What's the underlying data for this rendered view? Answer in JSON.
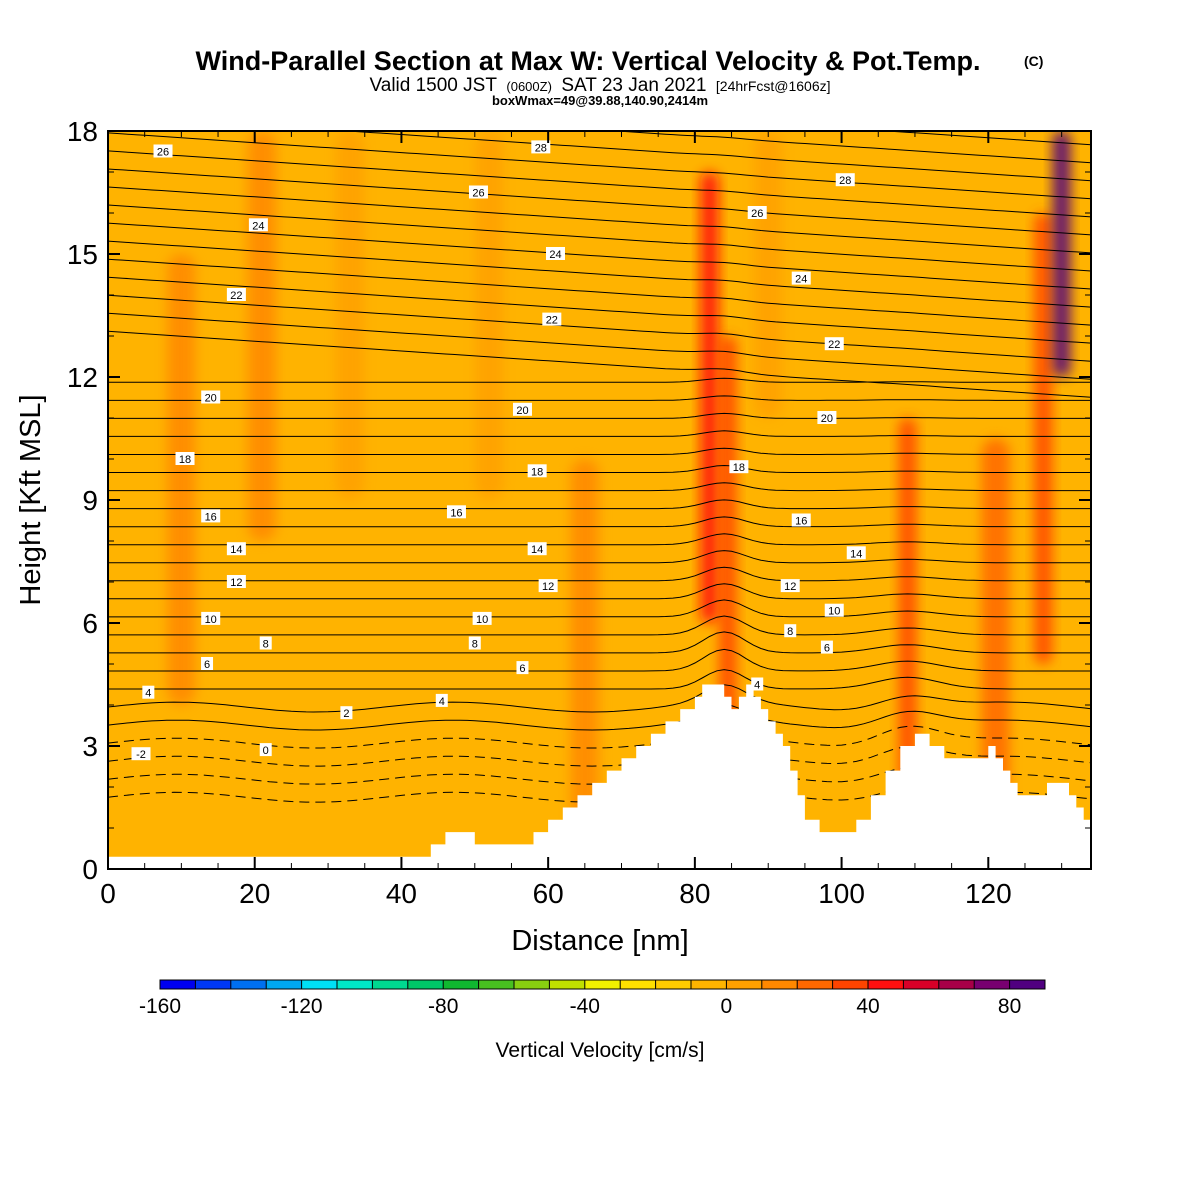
{
  "header": {
    "title": "Wind-Parallel Section at Max W: Vertical Velocity & Pot.Temp.",
    "title_mark": "(C)",
    "valid_prefix": "Valid 1500 JST",
    "valid_utc": "(0600Z)",
    "valid_date": "SAT 23 Jan 2021",
    "forecast": "[24hrFcst@1606z]",
    "box_info": "boxWmax=49@39.88,140.90,2414m"
  },
  "chart_data": {
    "type": "heatmap",
    "xlabel": "Distance [nm]",
    "ylabel": "Height [Kft MSL]",
    "xlim": [
      0,
      134
    ],
    "ylim": [
      0,
      18
    ],
    "x_ticks": [
      0,
      20,
      40,
      60,
      80,
      100,
      120
    ],
    "y_ticks": [
      0,
      3,
      6,
      9,
      12,
      15,
      18
    ],
    "grid": false,
    "colorbar": {
      "label": "Vertical Velocity [cm/s]",
      "min": -160,
      "max": 90,
      "step": 10,
      "tick_values": [
        -160,
        -120,
        -80,
        -40,
        0,
        40,
        80
      ],
      "colors": [
        "#0000f0",
        "#0038f5",
        "#0070f0",
        "#00a8f0",
        "#00e0f5",
        "#00e8c8",
        "#00d890",
        "#00c868",
        "#10b830",
        "#48c020",
        "#88d010",
        "#c0e000",
        "#f0f000",
        "#ffe000",
        "#ffcc00",
        "#ffb400",
        "#ffa000",
        "#ff8800",
        "#ff6800",
        "#ff4400",
        "#ff1010",
        "#d80028",
        "#a80048",
        "#780070",
        "#500080"
      ]
    },
    "velocity_bands": [
      {
        "x": 10,
        "z": 7,
        "w": 10
      },
      {
        "x": 21,
        "z": 11,
        "w": 12
      },
      {
        "x": 33,
        "z": 12,
        "w": 4
      },
      {
        "x": 52,
        "z": 12,
        "w": 3
      },
      {
        "x": 65,
        "z": 2,
        "w": 16
      },
      {
        "x": 82,
        "z": 9,
        "w": 40
      },
      {
        "x": 84.5,
        "z": 5,
        "w": 36
      },
      {
        "x": 90,
        "z": 14,
        "w": 5
      },
      {
        "x": 109,
        "z": 3,
        "w": 30
      },
      {
        "x": 121,
        "z": 2.5,
        "w": 28
      },
      {
        "x": 127.5,
        "z": 8,
        "w": 30
      },
      {
        "x": 130,
        "z": 15,
        "w": 85
      }
    ],
    "terrain": [
      [
        0,
        0.3
      ],
      [
        44,
        0.3
      ],
      [
        44,
        0.6
      ],
      [
        46,
        0.6
      ],
      [
        46,
        0.9
      ],
      [
        50,
        0.9
      ],
      [
        50,
        0.6
      ],
      [
        58,
        0.6
      ],
      [
        58,
        0.9
      ],
      [
        60,
        1.2
      ],
      [
        62,
        1.5
      ],
      [
        64,
        1.8
      ],
      [
        66,
        2.1
      ],
      [
        68,
        2.4
      ],
      [
        70,
        2.7
      ],
      [
        72,
        3.0
      ],
      [
        74,
        3.3
      ],
      [
        76,
        3.6
      ],
      [
        78,
        3.9
      ],
      [
        80,
        4.2
      ],
      [
        81,
        4.5
      ],
      [
        83,
        4.5
      ],
      [
        84,
        4.2
      ],
      [
        85,
        3.9
      ],
      [
        86,
        4.2
      ],
      [
        87,
        4.5
      ],
      [
        88,
        4.2
      ],
      [
        89,
        3.9
      ],
      [
        90,
        3.6
      ],
      [
        91,
        3.3
      ],
      [
        92,
        3.0
      ],
      [
        93,
        2.4
      ],
      [
        94,
        1.8
      ],
      [
        95,
        1.2
      ],
      [
        97,
        0.9
      ],
      [
        100,
        0.9
      ],
      [
        102,
        1.2
      ],
      [
        104,
        1.8
      ],
      [
        106,
        2.4
      ],
      [
        108,
        3.0
      ],
      [
        110,
        3.3
      ],
      [
        112,
        3.0
      ],
      [
        114,
        2.7
      ],
      [
        118,
        2.7
      ],
      [
        120,
        3.0
      ],
      [
        121,
        2.7
      ],
      [
        122,
        2.4
      ],
      [
        123,
        2.1
      ],
      [
        124,
        1.8
      ],
      [
        126,
        1.8
      ],
      [
        128,
        2.1
      ],
      [
        130,
        2.1
      ],
      [
        131,
        1.8
      ],
      [
        132,
        1.5
      ],
      [
        133,
        1.2
      ],
      [
        134,
        1.2
      ]
    ],
    "isentrope_labels": [
      {
        "x": 7.5,
        "y": 17.5,
        "text": "26"
      },
      {
        "x": 59,
        "y": 17.6,
        "text": "28"
      },
      {
        "x": 50.5,
        "y": 16.5,
        "text": "26"
      },
      {
        "x": 100.5,
        "y": 16.8,
        "text": "28"
      },
      {
        "x": 88.5,
        "y": 16.0,
        "text": "26"
      },
      {
        "x": 20.5,
        "y": 15.7,
        "text": "24"
      },
      {
        "x": 61,
        "y": 15.0,
        "text": "24"
      },
      {
        "x": 94.5,
        "y": 14.4,
        "text": "24"
      },
      {
        "x": 17.5,
        "y": 14.0,
        "text": "22"
      },
      {
        "x": 60.5,
        "y": 13.4,
        "text": "22"
      },
      {
        "x": 99,
        "y": 12.8,
        "text": "22"
      },
      {
        "x": 14,
        "y": 11.5,
        "text": "20"
      },
      {
        "x": 56.5,
        "y": 11.2,
        "text": "20"
      },
      {
        "x": 98,
        "y": 11.0,
        "text": "20"
      },
      {
        "x": 10.5,
        "y": 10.0,
        "text": "18"
      },
      {
        "x": 58.5,
        "y": 9.7,
        "text": "18"
      },
      {
        "x": 86,
        "y": 9.8,
        "text": "18"
      },
      {
        "x": 14,
        "y": 8.6,
        "text": "16"
      },
      {
        "x": 47.5,
        "y": 8.7,
        "text": "16"
      },
      {
        "x": 94.5,
        "y": 8.5,
        "text": "16"
      },
      {
        "x": 17.5,
        "y": 7.8,
        "text": "14"
      },
      {
        "x": 58.5,
        "y": 7.8,
        "text": "14"
      },
      {
        "x": 102,
        "y": 7.7,
        "text": "14"
      },
      {
        "x": 17.5,
        "y": 7.0,
        "text": "12"
      },
      {
        "x": 60,
        "y": 6.9,
        "text": "12"
      },
      {
        "x": 93,
        "y": 6.9,
        "text": "12"
      },
      {
        "x": 14,
        "y": 6.1,
        "text": "10"
      },
      {
        "x": 51,
        "y": 6.1,
        "text": "10"
      },
      {
        "x": 99,
        "y": 6.3,
        "text": "10"
      },
      {
        "x": 21.5,
        "y": 5.5,
        "text": "8"
      },
      {
        "x": 50,
        "y": 5.5,
        "text": "8"
      },
      {
        "x": 93,
        "y": 5.8,
        "text": "8"
      },
      {
        "x": 13.5,
        "y": 5.0,
        "text": "6"
      },
      {
        "x": 56.5,
        "y": 4.9,
        "text": "6"
      },
      {
        "x": 98,
        "y": 5.4,
        "text": "6"
      },
      {
        "x": 5.5,
        "y": 4.3,
        "text": "4"
      },
      {
        "x": 45.5,
        "y": 4.1,
        "text": "4"
      },
      {
        "x": 88.5,
        "y": 4.5,
        "text": "4"
      },
      {
        "x": 32.5,
        "y": 3.8,
        "text": "2"
      },
      {
        "x": 21.5,
        "y": 2.9,
        "text": "0"
      },
      {
        "x": 4.5,
        "y": 2.8,
        "text": "-2"
      }
    ]
  }
}
